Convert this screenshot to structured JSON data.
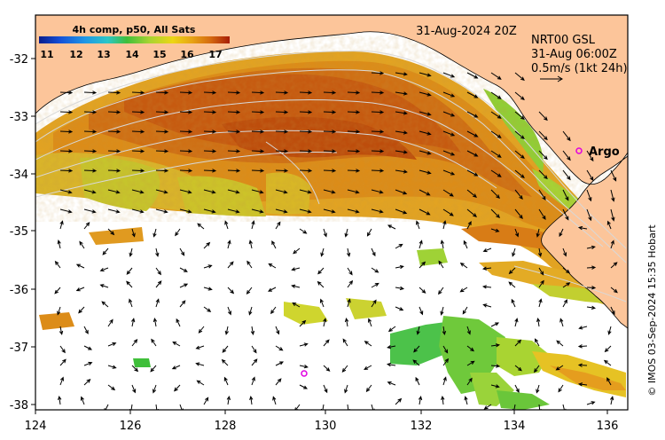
{
  "title": {
    "date": "31-Aug-2024 20Z"
  },
  "colorbar": {
    "title": "4h comp, p50, All Sats",
    "ticks": [
      "11",
      "12",
      "13",
      "14",
      "15",
      "16",
      "17"
    ],
    "range": [
      11,
      17.5
    ],
    "colors": [
      "#081d8c",
      "#1450d8",
      "#1e96e6",
      "#2cc7c7",
      "#3fbf3a",
      "#a8d431",
      "#ecd615",
      "#e8a514",
      "#d56a0f",
      "#a71d08"
    ]
  },
  "legend": {
    "line1": "NRT00 GSL",
    "line2": "31-Aug 06:00Z",
    "line3": "0.5m/s (1kt 24h)"
  },
  "credit": "© IMOS 03-Sep-2024 15:35 Hobart",
  "markers": {
    "argo_label": "Argo",
    "argo_color": "#e000e0"
  },
  "axes": {
    "x_ticks": [
      "124",
      "126",
      "128",
      "130",
      "132",
      "134",
      "136"
    ],
    "y_ticks": [
      "-32",
      "-33",
      "-34",
      "-35",
      "-36",
      "-37",
      "-38"
    ],
    "lon_range": [
      124,
      136.5
    ],
    "lat_range": [
      -38.1,
      -31.3
    ]
  },
  "colors": {
    "land": "#fcc59a",
    "coast": "#000000",
    "no_data": "#ffffff"
  }
}
